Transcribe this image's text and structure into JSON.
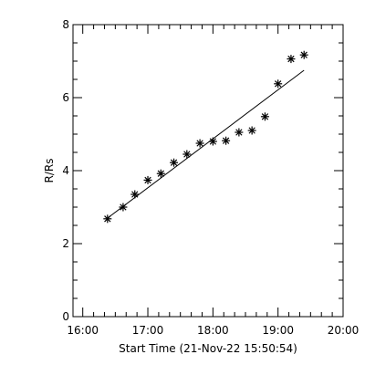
{
  "chart_data": {
    "type": "scatter",
    "xlabel": "Start Time (21-Nov-22 15:50:54)",
    "ylabel": "R/Rs",
    "x_ticks": [
      {
        "value": 16.0,
        "label": "16:00"
      },
      {
        "value": 17.0,
        "label": "17:00"
      },
      {
        "value": 18.0,
        "label": "18:00"
      },
      {
        "value": 19.0,
        "label": "19:00"
      },
      {
        "value": 20.0,
        "label": "20:00"
      }
    ],
    "y_ticks": [
      {
        "value": 0,
        "label": "0"
      },
      {
        "value": 2,
        "label": "2"
      },
      {
        "value": 4,
        "label": "4"
      },
      {
        "value": 6,
        "label": "6"
      },
      {
        "value": 8,
        "label": "8"
      }
    ],
    "xlim": [
      15.85,
      20.0
    ],
    "ylim": [
      0,
      8
    ],
    "grid": false,
    "series": [
      {
        "marker": "asterisk",
        "points": [
          {
            "x": 16.38,
            "y": 2.68
          },
          {
            "x": 16.62,
            "y": 3.0
          },
          {
            "x": 16.8,
            "y": 3.35
          },
          {
            "x": 17.0,
            "y": 3.74
          },
          {
            "x": 17.2,
            "y": 3.92
          },
          {
            "x": 17.4,
            "y": 4.22
          },
          {
            "x": 17.6,
            "y": 4.45
          },
          {
            "x": 17.8,
            "y": 4.75
          },
          {
            "x": 18.0,
            "y": 4.8
          },
          {
            "x": 18.2,
            "y": 4.82
          },
          {
            "x": 18.4,
            "y": 5.05
          },
          {
            "x": 18.6,
            "y": 5.1
          },
          {
            "x": 18.8,
            "y": 5.48
          },
          {
            "x": 19.0,
            "y": 6.38
          },
          {
            "x": 19.2,
            "y": 7.06
          },
          {
            "x": 19.4,
            "y": 7.17
          }
        ]
      }
    ],
    "fit_line": [
      {
        "x": 16.38,
        "y": 2.7
      },
      {
        "x": 19.4,
        "y": 6.75
      }
    ]
  }
}
